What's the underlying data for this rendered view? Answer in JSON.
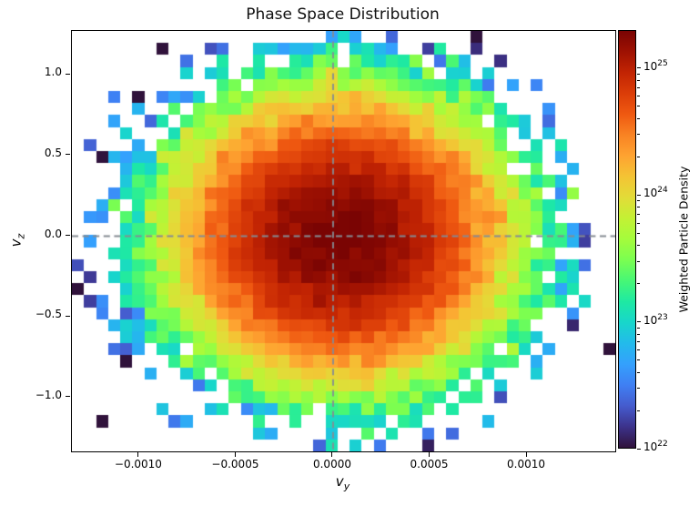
{
  "chart_data": {
    "type": "heatmap",
    "title": "Phase Space Distribution",
    "xlabel_base": "v",
    "xlabel_sub": "y",
    "ylabel_base": "v",
    "ylabel_sub": "z",
    "colorbar_label": "Weighted Particle Density",
    "x_range": [
      -0.001347,
      0.001455
    ],
    "y_range": [
      -1.334,
      1.272
    ],
    "bins": [
      45,
      35
    ],
    "x_ticks": [
      {
        "value": -0.001,
        "label": "−0.0010"
      },
      {
        "value": -0.0005,
        "label": "−0.0005"
      },
      {
        "value": 0.0,
        "label": "0.0000"
      },
      {
        "value": 0.0005,
        "label": "0.0005"
      },
      {
        "value": 0.001,
        "label": "0.0010"
      }
    ],
    "y_ticks": [
      {
        "value": 1.0,
        "label": "1.0"
      },
      {
        "value": 0.5,
        "label": "0.5"
      },
      {
        "value": 0.0,
        "label": "0.0"
      },
      {
        "value": -0.5,
        "label": "−0.5"
      },
      {
        "value": -1.0,
        "label": "−1.0"
      }
    ],
    "colorbar_ticks": [
      {
        "log10": 25,
        "label_base": "10",
        "label_exp": "25"
      },
      {
        "log10": 24,
        "label_base": "10",
        "label_exp": "24"
      },
      {
        "log10": 23,
        "label_base": "10",
        "label_exp": "23"
      },
      {
        "log10": 22,
        "label_base": "10",
        "label_exp": "22"
      }
    ],
    "norm": {
      "scale": "log",
      "vmin": 1e+22,
      "vmax": 2e+25
    },
    "colormap": {
      "name": "turbo",
      "stops": [
        [
          0.0,
          48,
          18,
          59
        ],
        [
          0.05,
          60,
          50,
          138
        ],
        [
          0.1,
          69,
          91,
          205
        ],
        [
          0.15,
          63,
          127,
          243
        ],
        [
          0.2,
          52,
          160,
          253
        ],
        [
          0.25,
          35,
          186,
          235
        ],
        [
          0.3,
          24,
          214,
          203
        ],
        [
          0.35,
          30,
          233,
          163
        ],
        [
          0.4,
          70,
          247,
          118
        ],
        [
          0.45,
          122,
          254,
          81
        ],
        [
          0.5,
          164,
          252,
          60
        ],
        [
          0.55,
          195,
          241,
          52
        ],
        [
          0.6,
          226,
          220,
          56
        ],
        [
          0.65,
          244,
          196,
          52
        ],
        [
          0.7,
          254,
          163,
          49
        ],
        [
          0.75,
          249,
          131,
          35
        ],
        [
          0.8,
          239,
          89,
          17
        ],
        [
          0.85,
          219,
          61,
          8
        ],
        [
          0.9,
          194,
          36,
          3
        ],
        [
          0.95,
          158,
          17,
          2
        ],
        [
          1.0,
          122,
          4,
          3
        ]
      ]
    },
    "crosshair": {
      "x": 0,
      "y": 0,
      "line_style": "dashed",
      "color": "#858c94"
    },
    "density_model": {
      "shape": "gaussian",
      "center": [
        4e-05,
        -0.01
      ],
      "sigma": [
        0.00035,
        0.36
      ],
      "peak_density": 2e+25,
      "empty_scale": 8e+22,
      "noise_log10_sigma": [
        0.04,
        0.4
      ],
      "seed": 20
    },
    "background_empty_color": "#ffffff"
  }
}
